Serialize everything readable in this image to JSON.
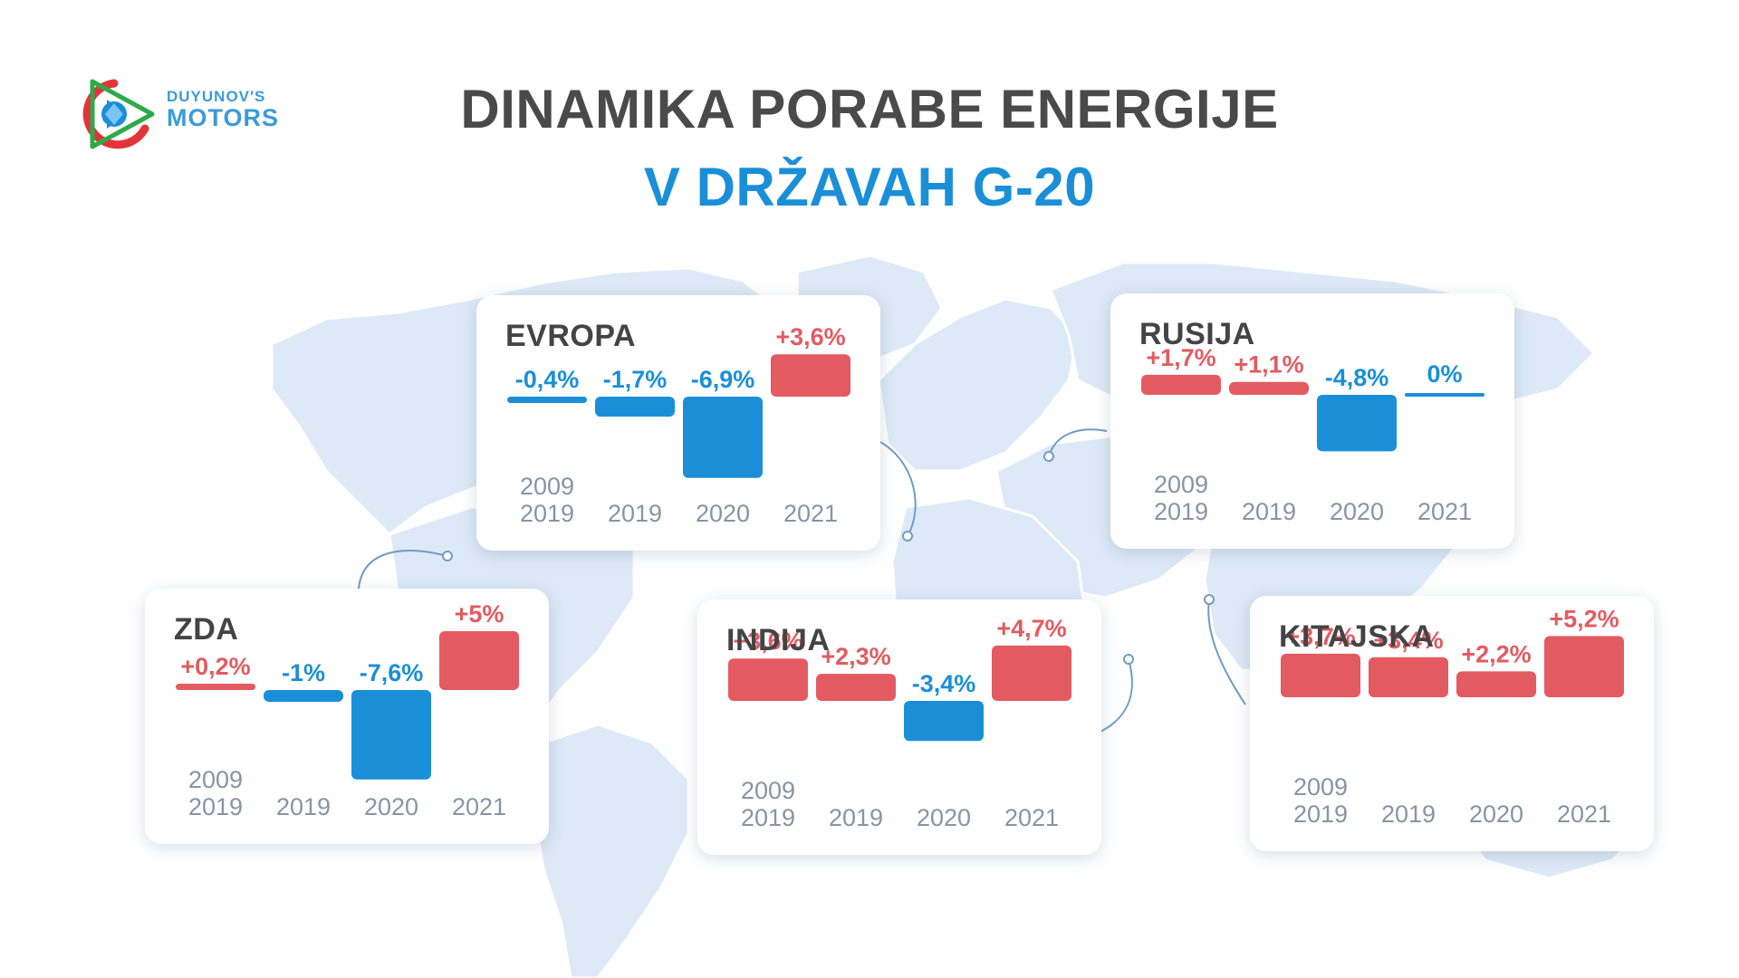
{
  "header": {
    "logo_line1": "DUYUNOV'S",
    "logo_line2": "MOTORS",
    "title_line1": "DINAMIKA PORABE ENERGIJE",
    "title_line2": "V DRŽAVAH G-20"
  },
  "colors": {
    "positive": "#e35b61",
    "negative": "#1a8fd8",
    "title_dark": "#4a4a4a",
    "title_blue": "#1a8fd8",
    "map": "#dbe8f6"
  },
  "chart_data": [
    {
      "type": "bar",
      "title": "EVROPA",
      "categories": [
        [
          "2009",
          "2019"
        ],
        [
          "2019"
        ],
        [
          "2020"
        ],
        [
          "2021"
        ]
      ],
      "values": [
        -0.4,
        -1.7,
        -6.9,
        3.6
      ],
      "labels": [
        "-0,4%",
        "-1,7%",
        "-6,9%",
        "+3,6%"
      ]
    },
    {
      "type": "bar",
      "title": "RUSIJA",
      "categories": [
        [
          "2009",
          "2019"
        ],
        [
          "2019"
        ],
        [
          "2020"
        ],
        [
          "2021"
        ]
      ],
      "values": [
        1.7,
        1.1,
        -4.8,
        0
      ],
      "labels": [
        "+1,7%",
        "+1,1%",
        "-4,8%",
        "0%"
      ]
    },
    {
      "type": "bar",
      "title": "ZDA",
      "categories": [
        [
          "2009",
          "2019"
        ],
        [
          "2019"
        ],
        [
          "2020"
        ],
        [
          "2021"
        ]
      ],
      "values": [
        0.2,
        -1,
        -7.6,
        5
      ],
      "labels": [
        "+0,2%",
        "-1%",
        "-7,6%",
        "+5%"
      ]
    },
    {
      "type": "bar",
      "title": "INDIJA",
      "categories": [
        [
          "2009",
          "2019"
        ],
        [
          "2019"
        ],
        [
          "2020"
        ],
        [
          "2021"
        ]
      ],
      "values": [
        3.6,
        2.3,
        -3.4,
        4.7
      ],
      "labels": [
        "+3,6%",
        "+2,3%",
        "-3,4%",
        "+4,7%"
      ]
    },
    {
      "type": "bar",
      "title": "KITAJSKA",
      "categories": [
        [
          "2009",
          "2019"
        ],
        [
          "2019"
        ],
        [
          "2020"
        ],
        [
          "2021"
        ]
      ],
      "values": [
        3.7,
        3.4,
        2.2,
        5.2
      ],
      "labels": [
        "+3,7%",
        "+3,4%",
        "+2,2%",
        "+5,2%"
      ]
    }
  ]
}
